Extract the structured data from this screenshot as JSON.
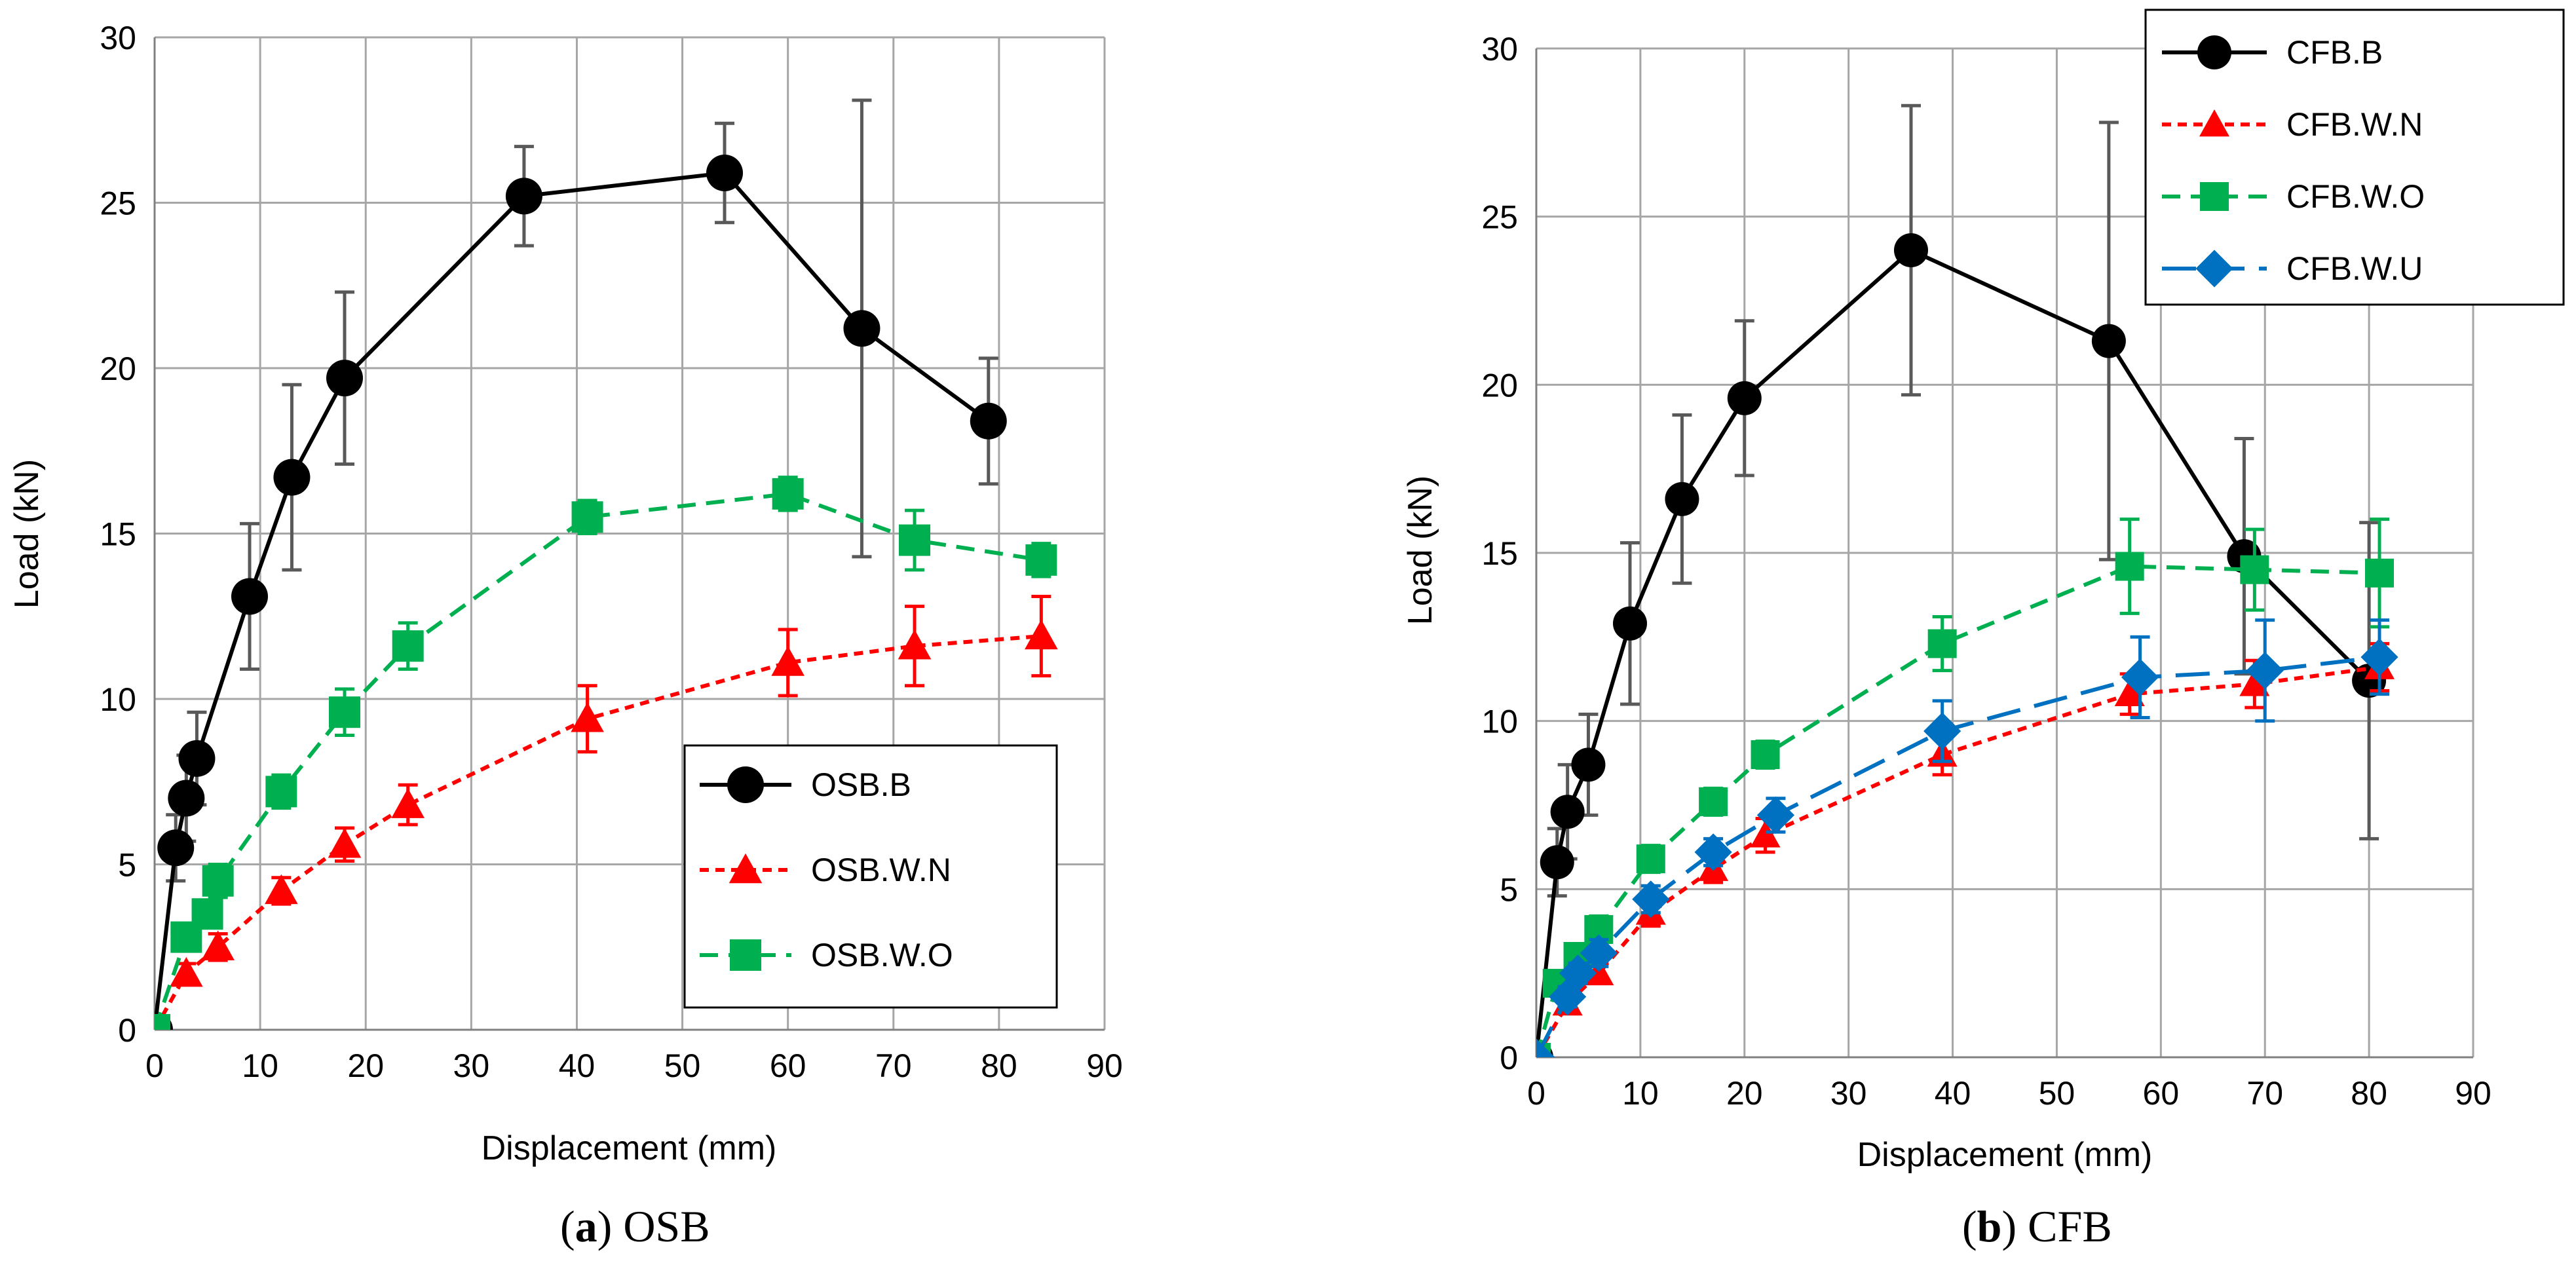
{
  "chart_data": [
    {
      "type": "line",
      "caption": {
        "letter": "a",
        "open": "(",
        "close": ")",
        "text": " OSB"
      },
      "xlabel": "Displacement (mm)",
      "ylabel": "Load (kN)",
      "xlim": [
        0,
        90
      ],
      "ylim": [
        0,
        30
      ],
      "xticks": [
        "0",
        "10",
        "20",
        "30",
        "40",
        "50",
        "60",
        "70",
        "80",
        "90"
      ],
      "yticks": [
        "0",
        "5",
        "10",
        "15",
        "20",
        "25",
        "30"
      ],
      "grid": true,
      "legend_position": "bottom-right",
      "series": [
        {
          "name": "OSB.B",
          "color": "#000000",
          "marker": "circle",
          "dash": "solid",
          "x": [
            0,
            2,
            3,
            4,
            9,
            13,
            18,
            35,
            54,
            67,
            79
          ],
          "y": [
            0,
            5.5,
            7.0,
            8.2,
            13.1,
            16.7,
            19.7,
            25.2,
            25.9,
            21.2,
            18.4
          ],
          "error": [
            0,
            1.0,
            1.3,
            1.4,
            2.2,
            2.8,
            2.6,
            1.5,
            1.5,
            6.9,
            1.9
          ]
        },
        {
          "name": "OSB.W.N",
          "color": "#ff0000",
          "marker": "triangle",
          "dash": "dot",
          "x": [
            0,
            3,
            6,
            12,
            18,
            24,
            41,
            60,
            72,
            84
          ],
          "y": [
            0,
            1.7,
            2.5,
            4.2,
            5.6,
            6.8,
            9.4,
            11.1,
            11.6,
            11.9
          ],
          "error": [
            0,
            0.3,
            0.4,
            0.4,
            0.5,
            0.6,
            1.0,
            1.0,
            1.2,
            1.2
          ]
        },
        {
          "name": "OSB.W.O",
          "color": "#00b050",
          "marker": "square",
          "dash": "dash",
          "x": [
            0,
            3,
            5,
            6,
            12,
            18,
            24,
            41,
            60,
            72,
            84
          ],
          "y": [
            0,
            2.8,
            3.5,
            4.5,
            7.2,
            9.6,
            11.6,
            15.5,
            16.2,
            14.8,
            14.2
          ],
          "error": [
            0,
            0.3,
            0.3,
            0.5,
            0.5,
            0.7,
            0.7,
            0.5,
            0.5,
            0.9,
            0.5
          ]
        }
      ]
    },
    {
      "type": "line",
      "caption": {
        "letter": "b",
        "open": "(",
        "close": ")",
        "text": " CFB"
      },
      "xlabel": "Displacement (mm)",
      "ylabel": "Load (kN)",
      "xlim": [
        0,
        90
      ],
      "ylim": [
        0,
        30
      ],
      "xticks": [
        "0",
        "10",
        "20",
        "30",
        "40",
        "50",
        "60",
        "70",
        "80",
        "90"
      ],
      "yticks": [
        "0",
        "5",
        "10",
        "15",
        "20",
        "25",
        "30"
      ],
      "grid": true,
      "legend_position": "top-right",
      "series": [
        {
          "name": "CFB.B",
          "color": "#000000",
          "marker": "circle",
          "dash": "solid",
          "x": [
            0,
            2,
            3,
            5,
            9,
            14,
            20,
            36,
            55,
            68,
            80
          ],
          "y": [
            0,
            5.8,
            7.3,
            8.7,
            12.9,
            16.6,
            19.6,
            24.0,
            21.3,
            14.9,
            11.2
          ],
          "error": [
            0,
            1.0,
            1.4,
            1.5,
            2.4,
            2.5,
            2.3,
            4.3,
            6.5,
            3.5,
            4.7
          ]
        },
        {
          "name": "CFB.W.N",
          "color": "#ff0000",
          "marker": "triangle",
          "dash": "dot",
          "x": [
            0,
            3,
            6,
            11,
            17,
            22,
            39,
            57,
            69,
            81
          ],
          "y": [
            0,
            1.6,
            2.5,
            4.3,
            5.6,
            6.6,
            9.0,
            10.8,
            11.1,
            11.6
          ],
          "error": [
            0,
            0.3,
            0.3,
            0.4,
            0.4,
            0.5,
            0.6,
            0.6,
            0.7,
            0.7
          ]
        },
        {
          "name": "CFB.W.O",
          "color": "#00b050",
          "marker": "square",
          "dash": "dash",
          "x": [
            0,
            2,
            4,
            6,
            11,
            17,
            22,
            39,
            57,
            69,
            81
          ],
          "y": [
            0,
            2.2,
            3.0,
            3.8,
            5.9,
            7.6,
            9.0,
            12.3,
            14.6,
            14.5,
            14.4
          ],
          "error": [
            0,
            0.3,
            0.3,
            0.4,
            0.4,
            0.4,
            0.4,
            0.8,
            1.4,
            1.2,
            1.6
          ]
        },
        {
          "name": "CFB.W.U",
          "color": "#0070c0",
          "marker": "diamond",
          "dash": "longdash",
          "x": [
            0,
            3,
            4,
            6,
            11,
            17,
            23,
            39,
            58,
            70,
            81
          ],
          "y": [
            0,
            1.8,
            2.5,
            3.1,
            4.7,
            6.1,
            7.2,
            9.7,
            11.3,
            11.5,
            11.9
          ],
          "error": [
            0,
            0.3,
            0.3,
            0.4,
            0.4,
            0.4,
            0.5,
            0.9,
            1.2,
            1.5,
            1.1
          ]
        }
      ]
    }
  ]
}
